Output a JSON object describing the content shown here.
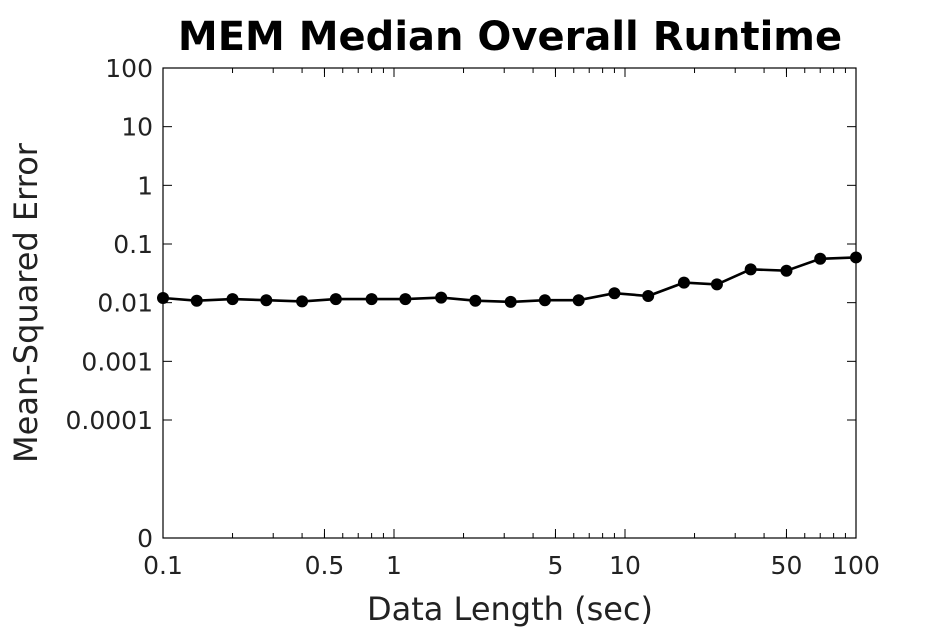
{
  "chart_data": {
    "type": "line",
    "title": "MEM Median Overall Runtime",
    "xlabel": "Data Length (sec)",
    "ylabel": "Mean-Squared Error",
    "xscale": "log",
    "yscale": "log",
    "xlim": [
      0.1,
      100
    ],
    "ylim": [
      "0",
      100
    ],
    "x_ticks": [
      "0.1",
      "0.5",
      "1",
      "5",
      "10",
      "50",
      "100"
    ],
    "y_ticks": [
      "100",
      "10",
      "1",
      "0.1",
      "0.01",
      "0.001",
      "0.0001",
      "0"
    ],
    "grid": false,
    "legend": "none",
    "line_color": "#000000",
    "marker": "circle",
    "series": [
      {
        "x": [
          0.1,
          0.14,
          0.2,
          0.28,
          0.4,
          0.56,
          0.8,
          1.12,
          1.6,
          2.25,
          3.2,
          4.5,
          6.3,
          9,
          12.6,
          18,
          25,
          35,
          50,
          70,
          100
        ],
        "y": [
          0.012,
          0.0108,
          0.0115,
          0.011,
          0.0105,
          0.0115,
          0.0115,
          0.0115,
          0.0122,
          0.0108,
          0.0103,
          0.011,
          0.011,
          0.0145,
          0.013,
          0.022,
          0.0205,
          0.037,
          0.035,
          0.056,
          0.059
        ]
      }
    ]
  }
}
